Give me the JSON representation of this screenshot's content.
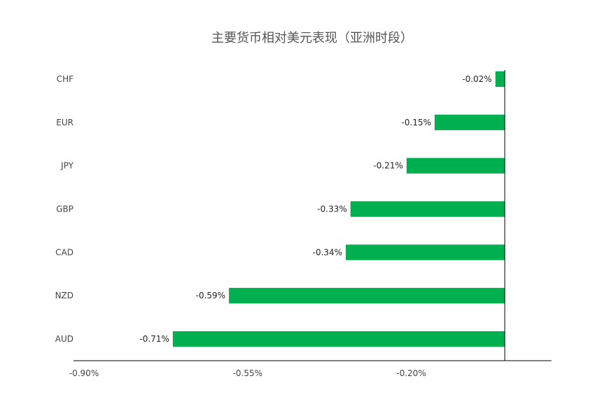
{
  "chart_data": {
    "type": "bar",
    "orientation": "horizontal",
    "title": "主要货币相对美元表现（亚洲时段）",
    "categories": [
      "CHF",
      "EUR",
      "JPY",
      "GBP",
      "CAD",
      "NZD",
      "AUD"
    ],
    "values": [
      -0.02,
      -0.15,
      -0.21,
      -0.33,
      -0.34,
      -0.59,
      -0.71
    ],
    "data_labels": [
      "-0.02%",
      "-0.15%",
      "-0.21%",
      "-0.33%",
      "-0.34%",
      "-0.59%",
      "-0.71%"
    ],
    "x_ticks": [
      -0.9,
      -0.55,
      -0.2
    ],
    "x_tick_labels": [
      "-0.90%",
      "-0.55%",
      "-0.20%"
    ],
    "xlim": [
      -0.9,
      0.1
    ],
    "xlabel": "",
    "ylabel": "",
    "grid": false,
    "legend": "none",
    "bar_color": "#00B050"
  }
}
